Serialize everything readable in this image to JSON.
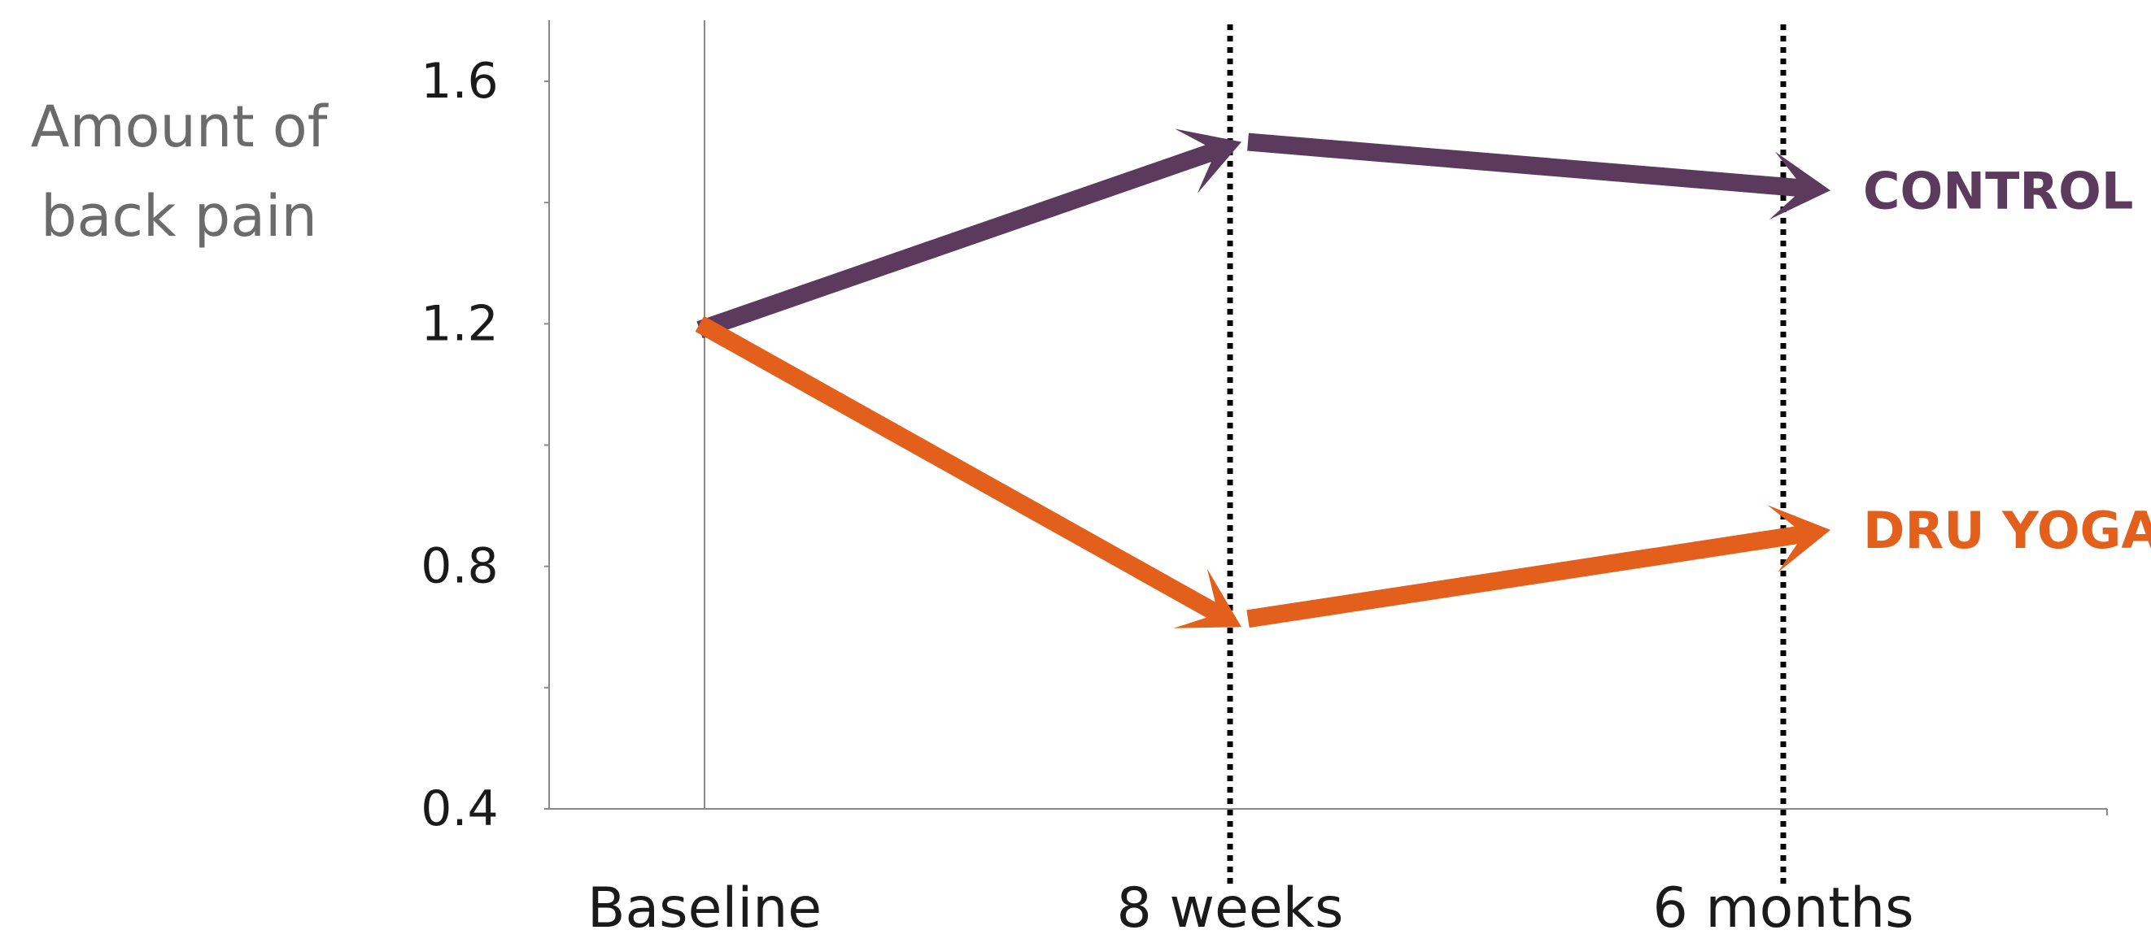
{
  "chart_data": {
    "type": "line",
    "ylabel_lines": [
      "Amount of",
      "back pain"
    ],
    "categories": [
      "Baseline",
      "8 weeks",
      "6 months"
    ],
    "yticks": [
      0.4,
      0.8,
      1.2,
      1.6
    ],
    "ylim": [
      0.4,
      1.7
    ],
    "grid": false,
    "legend": "series labels at right end of lines",
    "series": [
      {
        "name": "CONTROL",
        "color": "#5b3a5d",
        "values": [
          1.19,
          1.5,
          1.42
        ]
      },
      {
        "name": "DRU YOGA",
        "color": "#e35f1c",
        "values": [
          1.2,
          0.7,
          0.86
        ]
      }
    ]
  }
}
